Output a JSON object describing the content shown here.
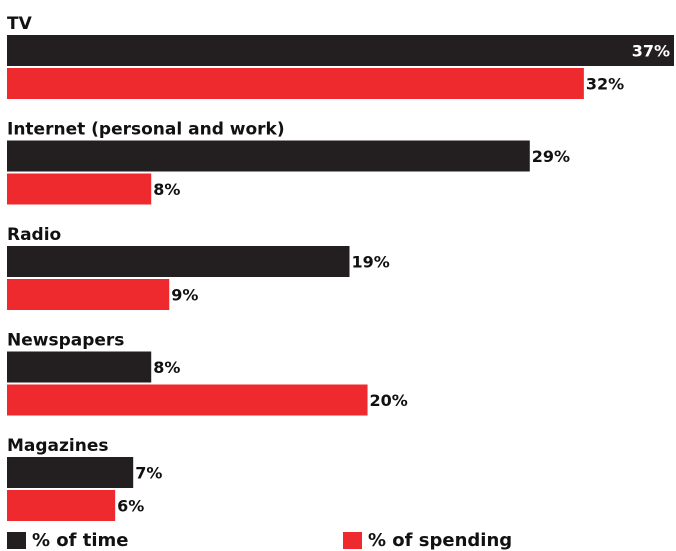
{
  "chart_data": {
    "type": "bar",
    "orientation": "horizontal",
    "categories": [
      "TV",
      "Internet (personal and work)",
      "Radio",
      "Newspapers",
      "Magazines"
    ],
    "series": [
      {
        "name": "% of time",
        "values": [
          37,
          29,
          19,
          8,
          7
        ],
        "labels": [
          "37%",
          "29%",
          "19%",
          "8%",
          "7%"
        ],
        "color": "#231f20"
      },
      {
        "name": "% of spending",
        "values": [
          32,
          8,
          9,
          20,
          6
        ],
        "labels": [
          "32%",
          "8%",
          "9%",
          "20%",
          "6%"
        ],
        "color": "#ee2a2f"
      }
    ],
    "xlim": [
      0,
      37
    ],
    "grid": false,
    "legend": "bottom"
  },
  "legend": {
    "time_label": "% of time",
    "spend_label": "% of spending"
  }
}
